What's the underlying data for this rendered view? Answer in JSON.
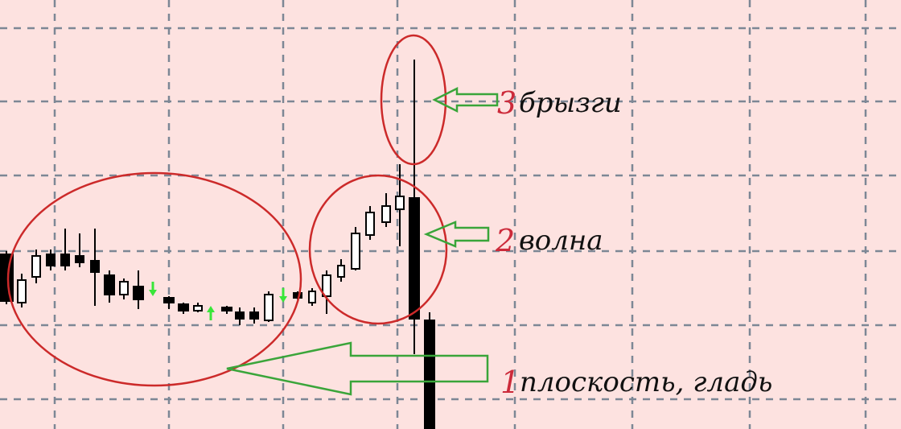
{
  "colors": {
    "background": "#fde2e0",
    "grid": "#7d8795",
    "candle": "#000000",
    "signal_arrow": "#39e639",
    "ellipse": "#cc2a2a",
    "pointer_arrow": "#3aa53a",
    "number": "#cc2a3a",
    "label": "#111111"
  },
  "chart_data": {
    "type": "candlestick",
    "grid": true,
    "annotations": [
      {
        "number": "3",
        "label": "брызги"
      },
      {
        "number": "2",
        "label": "волна"
      },
      {
        "number": "1",
        "label": "плоскость, гладь"
      }
    ]
  }
}
